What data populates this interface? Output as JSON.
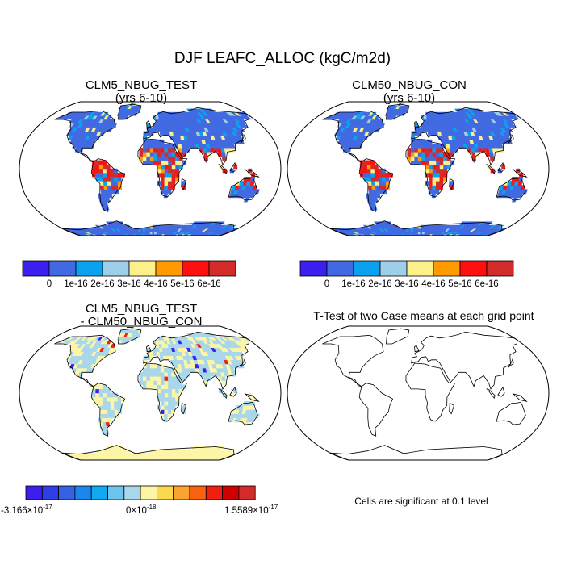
{
  "title": "DJF LEAFC_ALLOC (kgC/m2d)",
  "panels": [
    {
      "title": "CLM5_NBUG_TEST",
      "subtitle": "(yrs 6-10)"
    },
    {
      "title": "CLM50_NBUG_CON",
      "subtitle": "(yrs 6-10)"
    },
    {
      "title": "CLM5_NBUG_TEST",
      "subtitle": "- CLM50_NBUG_CON"
    },
    {
      "title": "T-Test of two Case means at each grid point",
      "subtitle": ""
    }
  ],
  "colorbar_abs": {
    "colors": [
      "#3a1fef",
      "#4169e1",
      "#0aa2ef",
      "#9ecfe9",
      "#fbf08a",
      "#ff9a00",
      "#ff1010",
      "#d32a2a"
    ],
    "labels": [
      "0",
      "1e-16",
      "2e-16",
      "3e-16",
      "4e-16",
      "5e-16",
      "6e-16"
    ]
  },
  "colorbar_diff": {
    "colors": [
      "#3a1fef",
      "#2e3fe8",
      "#3562e0",
      "#1a87ec",
      "#11a9f0",
      "#6fc4ee",
      "#a8d7ec",
      "#fdf5a6",
      "#fbd84e",
      "#fba32f",
      "#f9620f",
      "#f02010",
      "#d00000",
      "#d32a2a"
    ],
    "min_label": "-3.166×10",
    "min_exp": "-17",
    "mid_label": "0×10",
    "mid_exp": "-18",
    "max_label": "1.5589×10",
    "max_exp": "-17"
  },
  "ttest_note": "Cells are significant at 0.1 level"
}
